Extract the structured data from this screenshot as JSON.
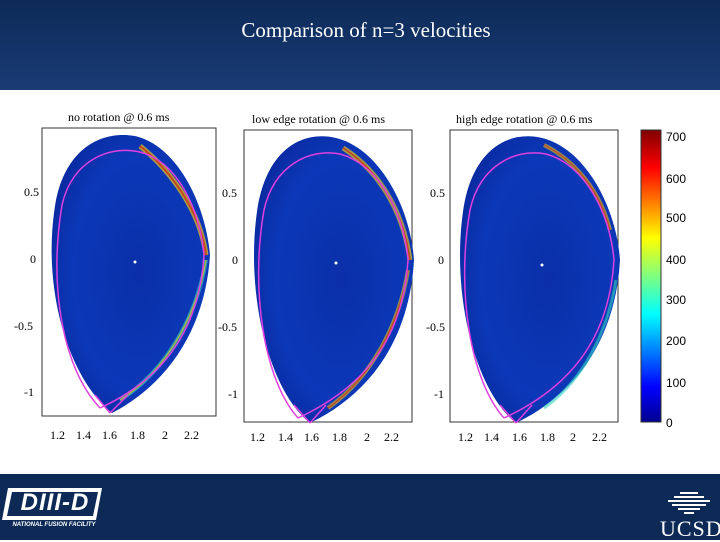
{
  "slide": {
    "title": "Comparison of n=3 velocities"
  },
  "panels": [
    {
      "title": "no rotation @ 0.6 ms",
      "y_ticks": [
        "0.5",
        "0",
        "-0.5",
        "-1"
      ],
      "x_ticks": [
        "1.2",
        "1.4",
        "1.6",
        "1.8",
        "2",
        "2.2"
      ]
    },
    {
      "title": "low edge rotation @ 0.6 ms",
      "y_ticks": [
        "0.5",
        "0",
        "-0.5",
        "-1"
      ],
      "x_ticks": [
        "1.2",
        "1.4",
        "1.6",
        "1.8",
        "2",
        "2.2"
      ]
    },
    {
      "title": "high edge rotation @ 0.6 ms",
      "y_ticks": [
        "0.5",
        "0",
        "-0.5",
        "-1"
      ],
      "x_ticks": [
        "1.2",
        "1.4",
        "1.6",
        "1.8",
        "2",
        "2.2"
      ]
    }
  ],
  "colorbar": {
    "ticks": [
      "700",
      "600",
      "500",
      "400",
      "300",
      "200",
      "100",
      "0"
    ]
  },
  "logos": {
    "left": "DIII-D",
    "left_sub": "NATIONAL FUSION FACILITY",
    "right": "UCSD"
  }
}
